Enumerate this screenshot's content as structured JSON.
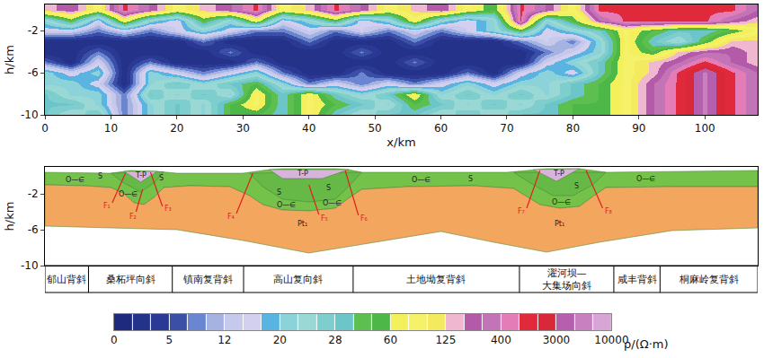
{
  "chart_data": [
    {
      "type": "heatmap",
      "x_label": "x/km",
      "y_label": "h/km",
      "xlim": [
        0,
        108
      ],
      "xticks": [
        0,
        10,
        20,
        30,
        40,
        50,
        60,
        70,
        80,
        90,
        100
      ],
      "ylim": [
        -10,
        0.5
      ],
      "yticks": [
        -2,
        -6,
        -10
      ],
      "x": [
        0,
        4,
        8,
        12,
        16,
        20,
        24,
        28,
        32,
        36,
        40,
        44,
        48,
        52,
        56,
        60,
        64,
        68,
        72,
        76,
        80,
        84,
        88,
        92,
        96,
        100,
        104,
        108
      ],
      "y": [
        0,
        -1,
        -2,
        -3,
        -4,
        -5,
        -6,
        -7,
        -8,
        -9,
        -10
      ],
      "z": [
        [
          150,
          300,
          90,
          1500,
          300,
          90,
          150,
          300,
          1500,
          90,
          150,
          1500,
          300,
          90,
          150,
          300,
          90,
          50,
          1500,
          300,
          90,
          1500,
          1500,
          1500,
          1500,
          1500,
          1500,
          300
        ],
        [
          22,
          50,
          15,
          90,
          22,
          15,
          50,
          22,
          90,
          15,
          22,
          50,
          15,
          22,
          90,
          22,
          15,
          22,
          1500,
          22,
          50,
          300,
          1500,
          1500,
          1500,
          1500,
          300,
          150
        ],
        [
          15,
          15,
          8,
          15,
          8,
          15,
          22,
          15,
          8,
          8,
          15,
          8,
          15,
          8,
          15,
          8,
          15,
          22,
          50,
          15,
          22,
          30,
          90,
          50,
          30,
          30,
          50,
          90
        ],
        [
          2,
          2,
          2,
          2,
          2,
          2,
          8,
          2,
          2,
          2,
          8,
          2,
          2,
          2,
          8,
          2,
          2,
          2,
          8,
          15,
          8,
          22,
          90,
          30,
          22,
          50,
          150,
          150
        ],
        [
          2,
          2,
          8,
          2,
          2,
          2,
          2,
          8,
          2,
          2,
          2,
          2,
          8,
          2,
          2,
          2,
          2,
          2,
          2,
          8,
          15,
          22,
          90,
          50,
          150,
          300,
          300,
          150
        ],
        [
          8,
          2,
          15,
          2,
          8,
          2,
          2,
          2,
          8,
          2,
          2,
          2,
          2,
          2,
          8,
          2,
          2,
          2,
          2,
          15,
          22,
          30,
          90,
          150,
          300,
          1500,
          300,
          150
        ],
        [
          22,
          15,
          22,
          2,
          22,
          15,
          8,
          15,
          22,
          8,
          2,
          2,
          8,
          2,
          2,
          2,
          8,
          2,
          15,
          22,
          15,
          30,
          90,
          150,
          1500,
          6000,
          1500,
          300
        ],
        [
          22,
          22,
          15,
          2,
          22,
          30,
          22,
          30,
          50,
          22,
          8,
          15,
          8,
          15,
          8,
          15,
          22,
          15,
          22,
          22,
          30,
          50,
          90,
          300,
          1500,
          6000,
          1500,
          300
        ],
        [
          30,
          22,
          22,
          8,
          30,
          22,
          30,
          22,
          90,
          30,
          90,
          30,
          22,
          30,
          90,
          22,
          30,
          22,
          30,
          22,
          30,
          50,
          90,
          300,
          1500,
          6000,
          1500,
          300
        ],
        [
          30,
          30,
          22,
          8,
          22,
          30,
          22,
          50,
          90,
          30,
          90,
          50,
          30,
          22,
          50,
          30,
          22,
          30,
          22,
          30,
          50,
          50,
          90,
          300,
          1500,
          6000,
          1500,
          300
        ],
        [
          30,
          22,
          30,
          8,
          22,
          30,
          22,
          50,
          50,
          30,
          90,
          30,
          22,
          30,
          30,
          22,
          30,
          22,
          30,
          30,
          50,
          50,
          90,
          300,
          1500,
          6000,
          1500,
          300
        ]
      ],
      "colorbar": {
        "label": "ρ/(Ω·m)",
        "ticks": [
          0,
          5,
          12,
          20,
          28,
          60,
          125,
          400,
          3000,
          10000
        ],
        "colors": [
          "#1e2a7e",
          "#24328a",
          "#2a3a94",
          "#3b4fa6",
          "#6a86d0",
          "#a6b2e2",
          "#c6c8ec",
          "#d2d0ee",
          "#5ab4e2",
          "#8bd3d8",
          "#9ad8d6",
          "#7ecece",
          "#6cc5c8",
          "#5dbf50",
          "#4db848",
          "#f3f05c",
          "#f5f26a",
          "#f4ea60",
          "#f0b8d0",
          "#b35aa8",
          "#c274b6",
          "#e47cb8",
          "#e02a3c",
          "#d8283a",
          "#b55fae",
          "#c880c0",
          "#d8a6d6"
        ]
      }
    },
    {
      "type": "cross_section",
      "y_label": "h/km",
      "xlim": [
        0,
        108
      ],
      "ylim": [
        -10,
        1
      ],
      "yticks": [
        -2,
        -6,
        -10
      ],
      "areas": [
        {
          "color": "#74c24a",
          "top": {
            "x": [
              0,
              10,
              12,
              13,
              17,
              20,
              30,
              34,
              36,
              44,
              46,
              48,
              70,
              74,
              76,
              81,
              85,
              108
            ],
            "y": [
              0.4,
              0.3,
              0.5,
              0.6,
              0.5,
              0.3,
              0.3,
              0.7,
              0.8,
              0.8,
              0.7,
              0.4,
              0.4,
              0.7,
              0.8,
              0.8,
              0.4,
              0.6
            ]
          },
          "base": {
            "x": [
              0,
              6,
              10,
              12,
              13.5,
              15,
              16.5,
              18,
              22,
              28,
              31,
              33,
              36,
              40,
              44,
              46,
              48,
              55,
              65,
              71,
              73,
              75,
              78,
              81,
              83,
              85,
              95,
              108
            ],
            "y": [
              -1.0,
              -1.1,
              -1.3,
              -2.0,
              -3.0,
              -3.2,
              -2.4,
              -1.3,
              -1.1,
              -1.2,
              -2.2,
              -3.2,
              -3.8,
              -3.9,
              -3.6,
              -2.5,
              -1.5,
              -1.2,
              -1.1,
              -1.4,
              -2.3,
              -3.2,
              -3.6,
              -3.4,
              -2.3,
              -1.3,
              -1.2,
              -1.2
            ]
          }
        },
        {
          "color": "#f2a65e",
          "top": {
            "x": [
              0,
              6,
              10,
              12,
              13.5,
              15,
              16.5,
              18,
              22,
              28,
              31,
              33,
              36,
              40,
              44,
              46,
              48,
              55,
              65,
              71,
              73,
              75,
              78,
              81,
              83,
              85,
              95,
              108
            ],
            "y": [
              -1.0,
              -1.1,
              -1.3,
              -2.0,
              -3.0,
              -3.2,
              -2.4,
              -1.3,
              -1.1,
              -1.2,
              -2.2,
              -3.2,
              -3.8,
              -3.9,
              -3.6,
              -2.5,
              -1.5,
              -1.2,
              -1.1,
              -1.4,
              -2.3,
              -3.2,
              -3.6,
              -3.4,
              -2.3,
              -1.3,
              -1.2,
              -1.2
            ]
          },
          "base": {
            "x": [
              0,
              10,
              20,
              30,
              40,
              50,
              60,
              68,
              76,
              84,
              95,
              108
            ],
            "y": [
              -5.6,
              -5.8,
              -6.0,
              -7.2,
              -8.6,
              -7.4,
              -6.2,
              -7.4,
              -8.5,
              -7.4,
              -6.1,
              -5.8
            ]
          }
        },
        {
          "color": "#66b946",
          "top": {
            "x": [
              10,
              18
            ],
            "y": [
              0.3,
              0.45
            ]
          },
          "base": {
            "x": [
              10,
              12,
              14.5,
              16.5,
              18
            ],
            "y": [
              0.3,
              -0.8,
              -1.8,
              -0.8,
              0.45
            ]
          }
        },
        {
          "color": "#66b946",
          "top": {
            "x": [
              31,
              48
            ],
            "y": [
              0.3,
              0.4
            ]
          },
          "base": {
            "x": [
              31,
              33,
              36,
              40,
              44,
              46,
              48
            ],
            "y": [
              0.3,
              -1.2,
              -2.6,
              -2.9,
              -2.6,
              -1.2,
              0.4
            ]
          }
        },
        {
          "color": "#66b946",
          "top": {
            "x": [
              71,
              85
            ],
            "y": [
              0.4,
              0.4
            ]
          },
          "base": {
            "x": [
              71,
              74,
              77,
              80,
              83,
              85
            ],
            "y": [
              0.4,
              -1.0,
              -2.2,
              -2.2,
              -1.0,
              0.4
            ]
          }
        },
        {
          "color": "#d8b4dc",
          "top": {
            "x": [
              12,
              17
            ],
            "y": [
              0.5,
              0.5
            ]
          },
          "base": {
            "x": [
              12,
              14.5,
              17
            ],
            "y": [
              0.5,
              -0.7,
              0.5
            ]
          }
        },
        {
          "color": "#d8b4dc",
          "top": {
            "x": [
              34,
              46
            ],
            "y": [
              0.7,
              0.7
            ]
          },
          "base": {
            "x": [
              34,
              36,
              42,
              46
            ],
            "y": [
              0.7,
              -0.3,
              -0.3,
              0.7
            ]
          }
        },
        {
          "color": "#d8b4dc",
          "top": {
            "x": [
              74,
              81
            ],
            "y": [
              0.7,
              0.8
            ]
          },
          "base": {
            "x": [
              74,
              77.5,
              81
            ],
            "y": [
              0.7,
              -0.6,
              0.8
            ]
          }
        }
      ],
      "faults": [
        {
          "x": [
            10.2,
            12.2
          ],
          "y": [
            -3.0,
            0.3
          ],
          "color": "#e02020"
        },
        {
          "x": [
            13.8,
            14.8
          ],
          "y": [
            -4.0,
            -1.5
          ],
          "color": "#e02020"
        },
        {
          "x": [
            17.8,
            16.0
          ],
          "y": [
            -3.4,
            0.4
          ],
          "color": "#e02020"
        },
        {
          "x": [
            29.0,
            31.5
          ],
          "y": [
            -4.2,
            0.3
          ],
          "color": "#e02020"
        },
        {
          "x": [
            41.5,
            40.0
          ],
          "y": [
            -4.3,
            -1.0
          ],
          "color": "#e02020"
        },
        {
          "x": [
            47.5,
            45.5
          ],
          "y": [
            -4.4,
            0.6
          ],
          "color": "#e02020"
        },
        {
          "x": [
            73.0,
            75.0
          ],
          "y": [
            -3.6,
            0.6
          ],
          "color": "#e02020"
        },
        {
          "x": [
            84.5,
            82.0
          ],
          "y": [
            -3.6,
            0.6
          ],
          "color": "#e02020"
        }
      ],
      "labels": [
        {
          "text": "S",
          "x": 8.4,
          "y": 0.0,
          "color": "#222222"
        },
        {
          "text": "T-P",
          "x": 14.5,
          "y": 0.1,
          "color": "#222222"
        },
        {
          "text": "S",
          "x": 17.6,
          "y": -0.2,
          "color": "#222222"
        },
        {
          "text": "O—∈",
          "x": 4.5,
          "y": -0.4,
          "color": "#222222"
        },
        {
          "text": "O—∈",
          "x": 12.6,
          "y": -2.0,
          "color": "#222222"
        },
        {
          "text": "T-P",
          "x": 39.0,
          "y": 0.25,
          "color": "#222222"
        },
        {
          "text": "S",
          "x": 35.5,
          "y": -1.8,
          "color": "#222222"
        },
        {
          "text": "S",
          "x": 43.0,
          "y": -1.3,
          "color": "#222222"
        },
        {
          "text": "O—∈",
          "x": 36.5,
          "y": -3.2,
          "color": "#222222"
        },
        {
          "text": "O—∈",
          "x": 43.5,
          "y": -3.0,
          "color": "#222222"
        },
        {
          "text": "Pt₁",
          "x": 39.0,
          "y": -5.3,
          "color": "#222222"
        },
        {
          "text": "O—∈",
          "x": 57.0,
          "y": -0.4,
          "color": "#222222"
        },
        {
          "text": "S",
          "x": 64.5,
          "y": -0.3,
          "color": "#222222"
        },
        {
          "text": "T-P",
          "x": 77.8,
          "y": 0.3,
          "color": "#222222"
        },
        {
          "text": "S",
          "x": 80.5,
          "y": -1.1,
          "color": "#222222"
        },
        {
          "text": "O—∈",
          "x": 78.3,
          "y": -2.9,
          "color": "#222222"
        },
        {
          "text": "Pt₁",
          "x": 78.0,
          "y": -5.3,
          "color": "#222222"
        },
        {
          "text": "O—∈",
          "x": 91.0,
          "y": -0.3,
          "color": "#222222"
        },
        {
          "text": "F₁",
          "x": 9.4,
          "y": -3.3,
          "color": "#e02020"
        },
        {
          "text": "F₂",
          "x": 13.4,
          "y": -4.5,
          "color": "#e02020"
        },
        {
          "text": "F₃",
          "x": 18.7,
          "y": -3.6,
          "color": "#e02020"
        },
        {
          "text": "F₄",
          "x": 28.2,
          "y": -4.5,
          "color": "#e02020"
        },
        {
          "text": "F₅",
          "x": 42.3,
          "y": -4.7,
          "color": "#e02020"
        },
        {
          "text": "F₆",
          "x": 48.4,
          "y": -4.7,
          "color": "#e02020"
        },
        {
          "text": "F₇",
          "x": 72.2,
          "y": -3.9,
          "color": "#e02020"
        },
        {
          "text": "F₈",
          "x": 85.4,
          "y": -3.9,
          "color": "#e02020"
        }
      ],
      "units": [
        {
          "name": "郁山背斜",
          "from": 0,
          "to": 6.6
        },
        {
          "name": "桑柘坪向斜",
          "from": 6.6,
          "to": 19.3
        },
        {
          "name": "镇南复背斜",
          "from": 19.3,
          "to": 30.1
        },
        {
          "name": "高山复向斜",
          "from": 30.1,
          "to": 46.7
        },
        {
          "name": "土地坳复背斜",
          "from": 46.7,
          "to": 71.9
        },
        {
          "name": "濯河坝—大集场向斜",
          "from": 71.9,
          "to": 86.2
        },
        {
          "name": "咸丰背斜",
          "from": 86.2,
          "to": 93.2
        },
        {
          "name": "桐麻岭复背斜",
          "from": 93.2,
          "to": 108
        }
      ]
    }
  ]
}
